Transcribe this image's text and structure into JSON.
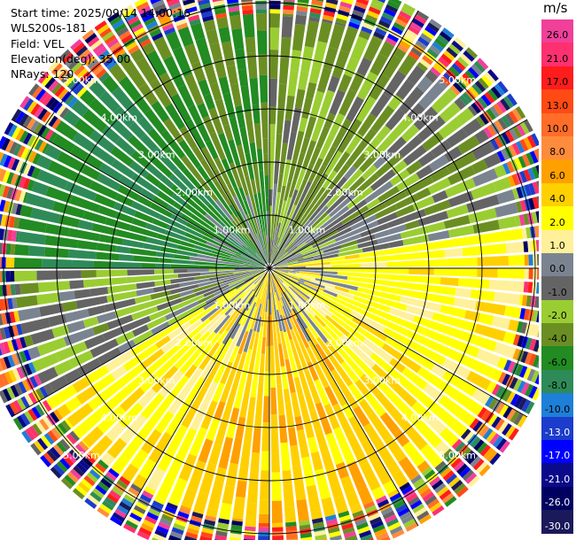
{
  "header": {
    "start_time": "Start time: 2025/09/14 14:00:16",
    "instrument": "WLS200s-181",
    "field": "Field: VEL",
    "elevation": "Elevation(deg): 35.00",
    "nrays": "NRays: 120"
  },
  "colorbar": {
    "unit": "m/s",
    "bins": [
      {
        "label": "26.0",
        "color": "#f0409a"
      },
      {
        "label": "21.0",
        "color": "#ff3070"
      },
      {
        "label": "17.0",
        "color": "#ff1c1c"
      },
      {
        "label": "13.0",
        "color": "#ff4a14"
      },
      {
        "label": "10.0",
        "color": "#ff6d28"
      },
      {
        "label": "8.0",
        "color": "#ff8c3c"
      },
      {
        "label": "6.0",
        "color": "#ffa000"
      },
      {
        "label": "4.0",
        "color": "#ffd000"
      },
      {
        "label": "2.0",
        "color": "#ffff00"
      },
      {
        "label": "1.0",
        "color": "#fff09a"
      },
      {
        "label": "0.0",
        "color": "#7a8490"
      },
      {
        "label": "-1.0",
        "color": "#646464"
      },
      {
        "label": "-2.0",
        "color": "#9acd32"
      },
      {
        "label": "-4.0",
        "color": "#6b8e23"
      },
      {
        "label": "-6.0",
        "color": "#228b22"
      },
      {
        "label": "-8.0",
        "color": "#2e8b57"
      },
      {
        "label": "-10.0",
        "color": "#1e7fd8"
      },
      {
        "label": "-13.0",
        "color": "#1c3ccc"
      },
      {
        "label": "-17.0",
        "color": "#0000ff"
      },
      {
        "label": "-21.0",
        "color": "#0a0a8a"
      },
      {
        "label": "-26.0",
        "color": "#000060"
      },
      {
        "label": "-30.0",
        "color": "#1a1a5a"
      }
    ]
  },
  "chart_data": {
    "type": "heatmap",
    "projection": "polar PPI",
    "field": "VEL",
    "unit": "m/s",
    "nrays": 120,
    "range_rings_km": [
      1.0,
      2.0,
      3.0,
      4.0,
      5.0
    ],
    "ring_labels": [
      "1.00km",
      "2.00km",
      "3.00km",
      "4.00km",
      "5.00km"
    ],
    "max_range_km": 5.6,
    "spokes_deg": [
      0,
      30,
      60,
      90,
      120,
      150,
      180,
      210,
      240,
      270,
      300,
      330
    ],
    "velocity_regions": [
      {
        "from_deg": 0,
        "to_deg": 40,
        "value": -2.0
      },
      {
        "from_deg": 40,
        "to_deg": 80,
        "value": -1.0
      },
      {
        "from_deg": 80,
        "to_deg": 140,
        "value": 3.0
      },
      {
        "from_deg": 140,
        "to_deg": 200,
        "value": 5.0
      },
      {
        "from_deg": 200,
        "to_deg": 240,
        "value": 3.0
      },
      {
        "from_deg": 240,
        "to_deg": 270,
        "value": -1.0
      },
      {
        "from_deg": 270,
        "to_deg": 320,
        "value": -6.0
      },
      {
        "from_deg": 320,
        "to_deg": 360,
        "value": -4.0
      }
    ],
    "outer_noise_from_km": 4.8
  }
}
